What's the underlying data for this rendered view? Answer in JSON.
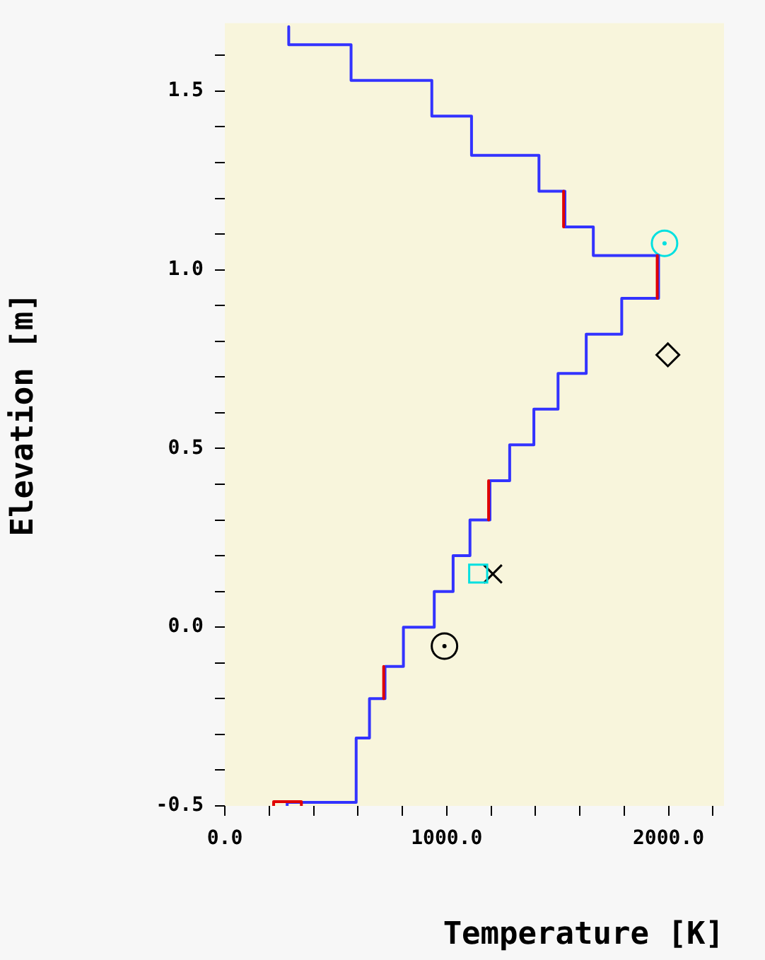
{
  "chart_data": {
    "type": "line",
    "xlabel": "Temperature [K]",
    "ylabel": "Elevation [m]",
    "xlim": [
      0,
      2250
    ],
    "ylim": [
      -0.5,
      1.69
    ],
    "xticks": [
      {
        "value": 0,
        "label": "0.0"
      },
      {
        "value": 200,
        "label": null
      },
      {
        "value": 400,
        "label": null
      },
      {
        "value": 600,
        "label": null
      },
      {
        "value": 800,
        "label": null
      },
      {
        "value": 1000,
        "label": "1000.0"
      },
      {
        "value": 1200,
        "label": null
      },
      {
        "value": 1400,
        "label": null
      },
      {
        "value": 1600,
        "label": null
      },
      {
        "value": 1800,
        "label": null
      },
      {
        "value": 2000,
        "label": "2000.0"
      },
      {
        "value": 2200,
        "label": null
      }
    ],
    "yticks": [
      {
        "value": -0.5,
        "label": "-0.5"
      },
      {
        "value": -0.4,
        "label": null
      },
      {
        "value": -0.3,
        "label": null
      },
      {
        "value": -0.2,
        "label": null
      },
      {
        "value": -0.1,
        "label": null
      },
      {
        "value": 0,
        "label": "0.0"
      },
      {
        "value": 0.1,
        "label": null
      },
      {
        "value": 0.2,
        "label": null
      },
      {
        "value": 0.3,
        "label": null
      },
      {
        "value": 0.4,
        "label": null
      },
      {
        "value": 0.5,
        "label": "0.5"
      },
      {
        "value": 0.6,
        "label": null
      },
      {
        "value": 0.7,
        "label": null
      },
      {
        "value": 0.8,
        "label": null
      },
      {
        "value": 0.9,
        "label": null
      },
      {
        "value": 1.0,
        "label": "1.0"
      },
      {
        "value": 1.1,
        "label": null
      },
      {
        "value": 1.2,
        "label": null
      },
      {
        "value": 1.3,
        "label": null
      },
      {
        "value": 1.4,
        "label": null
      },
      {
        "value": 1.5,
        "label": "1.5"
      },
      {
        "value": 1.6,
        "label": null
      }
    ],
    "grid": false,
    "legend": false,
    "series": [
      {
        "color": "#e00000",
        "x": [
          1527,
          1527,
          null,
          1949,
          1949,
          null,
          1189,
          1189,
          null,
          716,
          716,
          null,
          220,
          220,
          345,
          345
        ],
        "values": [
          1.22,
          1.12,
          null,
          1.04,
          0.92,
          null,
          0.41,
          0.3,
          null,
          -0.11,
          -0.2,
          null,
          -0.5,
          -0.488,
          -0.488,
          -0.5
        ]
      },
      {
        "color": "#3333ff",
        "x": [
          288,
          288,
          569,
          569,
          933,
          933,
          1112,
          1112,
          1416,
          1416,
          1533,
          1533,
          1661,
          1661,
          1955,
          1955,
          1789,
          1789,
          1629,
          1629,
          1502,
          1502,
          1393,
          1393,
          1284,
          1284,
          1195,
          1195,
          1105,
          1105,
          1029,
          1029,
          944,
          944,
          805,
          805,
          722,
          722,
          652,
          652,
          592,
          592,
          281,
          281
        ],
        "values": [
          1.68,
          1.63,
          1.63,
          1.53,
          1.53,
          1.43,
          1.43,
          1.32,
          1.32,
          1.22,
          1.22,
          1.12,
          1.12,
          1.04,
          1.04,
          0.92,
          0.92,
          0.82,
          0.82,
          0.71,
          0.71,
          0.61,
          0.61,
          0.51,
          0.51,
          0.41,
          0.41,
          0.3,
          0.3,
          0.2,
          0.2,
          0.1,
          0.1,
          0.0,
          0.0,
          -0.11,
          -0.11,
          -0.2,
          -0.2,
          -0.31,
          -0.31,
          -0.49,
          -0.49,
          -0.5
        ]
      },
      {
        "type": "scatter",
        "color": "#00e0e0",
        "marker": "circle",
        "x": [
          1982
        ],
        "values": [
          1.074
        ]
      },
      {
        "type": "scatter",
        "color": "#000000",
        "marker": "diamond",
        "x": [
          1997
        ],
        "values": [
          0.762
        ]
      },
      {
        "type": "scatter",
        "color": "#00e0e0",
        "marker": "square",
        "x": [
          1142
        ],
        "values": [
          0.15
        ]
      },
      {
        "type": "scatter",
        "color": "#000000",
        "marker": "cross",
        "x": [
          1208
        ],
        "values": [
          0.149
        ]
      },
      {
        "type": "scatter",
        "color": "#000000",
        "marker": "circle",
        "x": [
          990
        ],
        "values": [
          -0.053
        ]
      }
    ]
  }
}
